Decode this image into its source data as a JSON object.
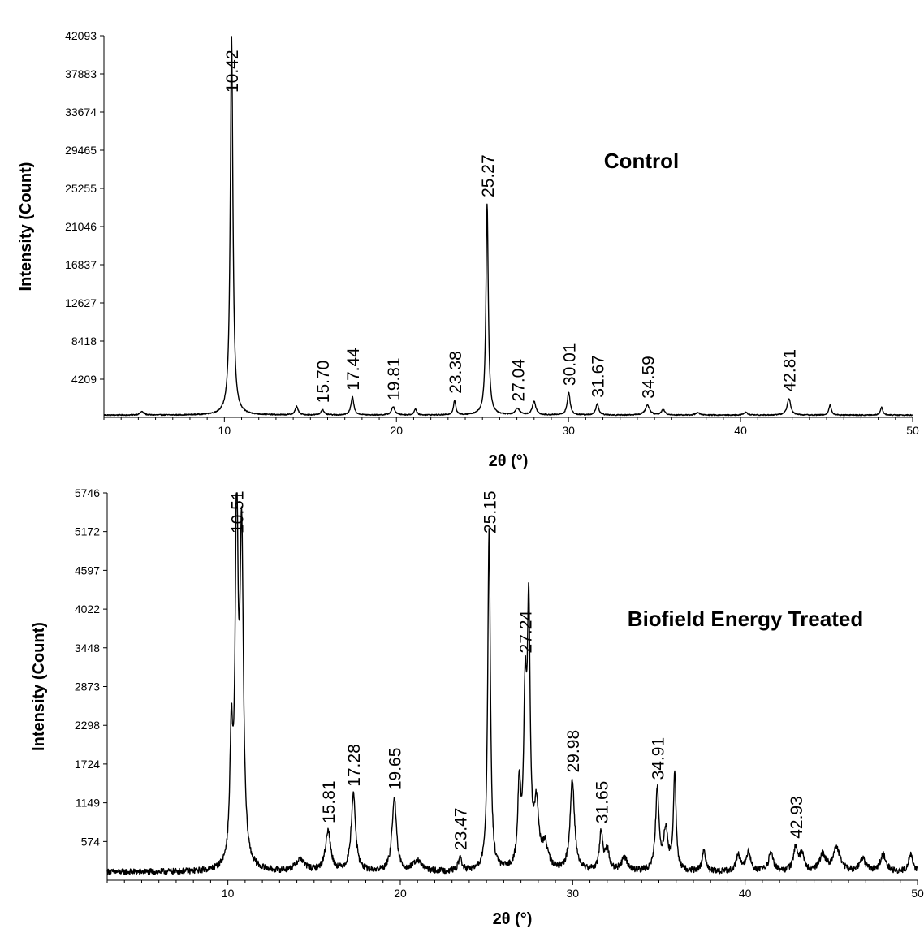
{
  "chart_data": [
    {
      "type": "line",
      "title": "Control",
      "xlabel": "2θ (°)",
      "ylabel": "Intensity (Count)",
      "xlim": [
        3,
        50
      ],
      "ylim": [
        0,
        42093
      ],
      "xticks": [
        10,
        20,
        30,
        40,
        50
      ],
      "xtick_labels": [
        "10",
        "20",
        "30",
        "40",
        "50"
      ],
      "yticks": [
        4209,
        8418,
        12627,
        16837,
        21046,
        25255,
        29465,
        33674,
        37883,
        42093
      ],
      "ytick_labels": [
        "4209",
        "8418",
        "12627",
        "16837",
        "21046",
        "25255",
        "29465",
        "33674",
        "37883",
        "42093"
      ],
      "grid": false,
      "baseline": 250,
      "noise": 60,
      "peaks": [
        {
          "x": 5.2,
          "y": 400,
          "w": 0.12
        },
        {
          "x": 10.42,
          "y": 41800,
          "w": 0.09
        },
        {
          "x": 14.2,
          "y": 950,
          "w": 0.1
        },
        {
          "x": 15.7,
          "y": 600,
          "w": 0.1
        },
        {
          "x": 17.44,
          "y": 2000,
          "w": 0.1
        },
        {
          "x": 19.81,
          "y": 900,
          "w": 0.12
        },
        {
          "x": 21.1,
          "y": 700,
          "w": 0.08
        },
        {
          "x": 23.38,
          "y": 1600,
          "w": 0.08
        },
        {
          "x": 25.27,
          "y": 23300,
          "w": 0.08
        },
        {
          "x": 27.04,
          "y": 700,
          "w": 0.15
        },
        {
          "x": 28.0,
          "y": 1500,
          "w": 0.12
        },
        {
          "x": 30.01,
          "y": 2500,
          "w": 0.1
        },
        {
          "x": 31.67,
          "y": 1200,
          "w": 0.1
        },
        {
          "x": 34.59,
          "y": 1100,
          "w": 0.15
        },
        {
          "x": 35.5,
          "y": 600,
          "w": 0.12
        },
        {
          "x": 37.5,
          "y": 300,
          "w": 0.12
        },
        {
          "x": 40.3,
          "y": 300,
          "w": 0.12
        },
        {
          "x": 42.81,
          "y": 1850,
          "w": 0.12
        },
        {
          "x": 45.2,
          "y": 1150,
          "w": 0.08
        },
        {
          "x": 48.2,
          "y": 900,
          "w": 0.08
        }
      ],
      "peak_labels": [
        {
          "x": 10.42,
          "text": "10.42"
        },
        {
          "x": 15.7,
          "text": "15.70"
        },
        {
          "x": 17.44,
          "text": "17.44"
        },
        {
          "x": 19.81,
          "text": "19.81"
        },
        {
          "x": 23.38,
          "text": "23.38"
        },
        {
          "x": 25.27,
          "text": "25.27"
        },
        {
          "x": 27.04,
          "text": "27.04"
        },
        {
          "x": 30.01,
          "text": "30.01"
        },
        {
          "x": 31.67,
          "text": "31.67"
        },
        {
          "x": 34.59,
          "text": "34.59"
        },
        {
          "x": 42.81,
          "text": "42.81"
        }
      ]
    },
    {
      "type": "line",
      "title": "Biofield Energy Treated",
      "xlabel": "2θ (°)",
      "ylabel": "Intensity (Count)",
      "xlim": [
        3,
        50
      ],
      "ylim": [
        0,
        5746
      ],
      "xticks": [
        10,
        20,
        30,
        40,
        50
      ],
      "xtick_labels": [
        "10",
        "20",
        "30",
        "40",
        "50"
      ],
      "yticks": [
        574,
        1149,
        1724,
        2298,
        2873,
        3448,
        4022,
        4597,
        5172,
        5746
      ],
      "ytick_labels": [
        "574",
        "1149",
        "1724",
        "2298",
        "2873",
        "3448",
        "4022",
        "4597",
        "5172",
        "5746"
      ],
      "grid": false,
      "baseline": 120,
      "noise": 45,
      "peaks": [
        {
          "x": 10.2,
          "y": 1800,
          "w": 0.1
        },
        {
          "x": 10.51,
          "y": 5200,
          "w": 0.1
        },
        {
          "x": 10.8,
          "y": 4800,
          "w": 0.12
        },
        {
          "x": 14.2,
          "y": 180,
          "w": 0.3
        },
        {
          "x": 15.81,
          "y": 600,
          "w": 0.18
        },
        {
          "x": 17.28,
          "y": 1150,
          "w": 0.15
        },
        {
          "x": 19.65,
          "y": 1100,
          "w": 0.15
        },
        {
          "x": 21.0,
          "y": 150,
          "w": 0.3
        },
        {
          "x": 23.47,
          "y": 200,
          "w": 0.12
        },
        {
          "x": 25.15,
          "y": 5100,
          "w": 0.09
        },
        {
          "x": 26.9,
          "y": 1200,
          "w": 0.1
        },
        {
          "x": 27.24,
          "y": 2300,
          "w": 0.1
        },
        {
          "x": 27.45,
          "y": 3700,
          "w": 0.1
        },
        {
          "x": 27.9,
          "y": 900,
          "w": 0.15
        },
        {
          "x": 28.4,
          "y": 350,
          "w": 0.2
        },
        {
          "x": 29.98,
          "y": 1350,
          "w": 0.15
        },
        {
          "x": 31.65,
          "y": 550,
          "w": 0.12
        },
        {
          "x": 32.0,
          "y": 300,
          "w": 0.15
        },
        {
          "x": 33.0,
          "y": 200,
          "w": 0.2
        },
        {
          "x": 34.91,
          "y": 1200,
          "w": 0.12
        },
        {
          "x": 35.4,
          "y": 600,
          "w": 0.15
        },
        {
          "x": 35.92,
          "y": 1450,
          "w": 0.09
        },
        {
          "x": 37.6,
          "y": 300,
          "w": 0.12
        },
        {
          "x": 39.6,
          "y": 250,
          "w": 0.15
        },
        {
          "x": 40.2,
          "y": 300,
          "w": 0.15
        },
        {
          "x": 41.5,
          "y": 300,
          "w": 0.15
        },
        {
          "x": 42.93,
          "y": 350,
          "w": 0.15
        },
        {
          "x": 43.3,
          "y": 250,
          "w": 0.15
        },
        {
          "x": 44.5,
          "y": 250,
          "w": 0.2
        },
        {
          "x": 45.3,
          "y": 350,
          "w": 0.25
        },
        {
          "x": 46.8,
          "y": 200,
          "w": 0.2
        },
        {
          "x": 48.0,
          "y": 250,
          "w": 0.2
        },
        {
          "x": 49.6,
          "y": 250,
          "w": 0.15
        }
      ],
      "peak_labels": [
        {
          "x": 10.51,
          "text": "10.51"
        },
        {
          "x": 15.81,
          "text": "15.81"
        },
        {
          "x": 17.28,
          "text": "17.28"
        },
        {
          "x": 19.65,
          "text": "19.65"
        },
        {
          "x": 23.47,
          "text": "23.47"
        },
        {
          "x": 25.15,
          "text": "25.15"
        },
        {
          "x": 27.24,
          "text": "27.24"
        },
        {
          "x": 29.98,
          "text": "29.98"
        },
        {
          "x": 31.65,
          "text": "31.65"
        },
        {
          "x": 34.91,
          "text": "34.91"
        },
        {
          "x": 42.93,
          "text": "42.93"
        }
      ]
    }
  ]
}
